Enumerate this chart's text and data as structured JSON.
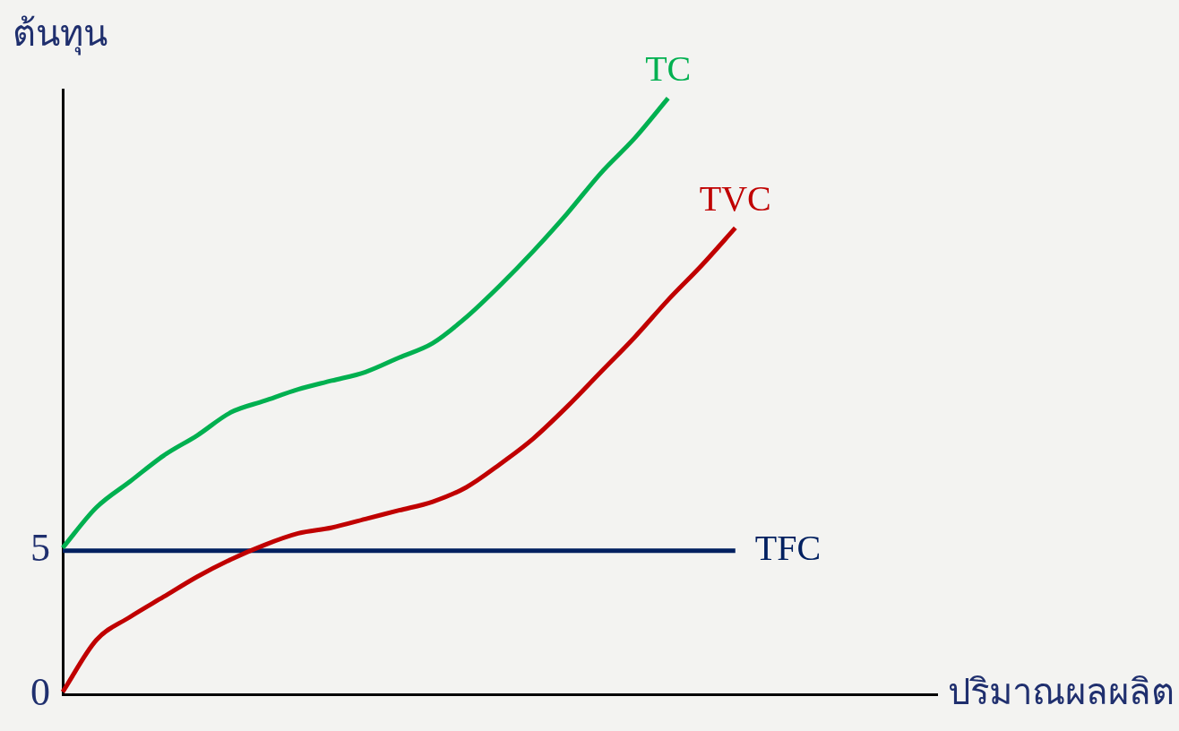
{
  "chart_data": {
    "type": "line",
    "ylabel": "ต้นทุน",
    "xlabel": "ปริมาณผลผลิต",
    "categories": [
      null,
      null,
      null,
      null,
      null,
      null,
      null,
      null,
      null,
      null,
      null,
      null,
      null,
      null,
      null,
      null,
      null,
      null,
      null,
      null,
      null,
      null,
      null,
      null,
      null,
      null,
      null
    ],
    "series": [
      {
        "name": "TC",
        "color": "#00b050",
        "values": [
          5.1,
          6.5,
          7.4,
          8.3,
          9.0,
          9.8,
          10.2,
          10.6,
          10.9,
          11.2,
          11.7,
          12.2,
          13.1,
          14.2,
          15.4,
          16.7,
          18.1,
          19.3,
          20.7,
          null,
          null,
          null,
          null,
          null,
          null,
          null,
          null
        ]
      },
      {
        "name": "TVC",
        "color": "#c00000",
        "values": [
          0.1,
          1.9,
          2.7,
          3.4,
          4.1,
          4.7,
          5.2,
          5.6,
          5.8,
          6.1,
          6.4,
          6.7,
          7.2,
          8.0,
          8.9,
          10.0,
          11.2,
          12.4,
          13.7,
          14.9,
          16.2,
          null,
          null,
          null,
          null,
          null,
          null
        ]
      },
      {
        "name": "TFC",
        "color": "#002060",
        "values": [
          5,
          5,
          5,
          5,
          5,
          5,
          5,
          5,
          5,
          5,
          5,
          5,
          5,
          5,
          5,
          5,
          5,
          5,
          5,
          5,
          5,
          null,
          null,
          null,
          null,
          null,
          null
        ]
      }
    ],
    "ylim": [
      0,
      21
    ],
    "yticks": [
      0,
      5
    ],
    "grid": false,
    "legend": false,
    "tick_labels": "y",
    "marker": "none",
    "line_style": "solid"
  }
}
